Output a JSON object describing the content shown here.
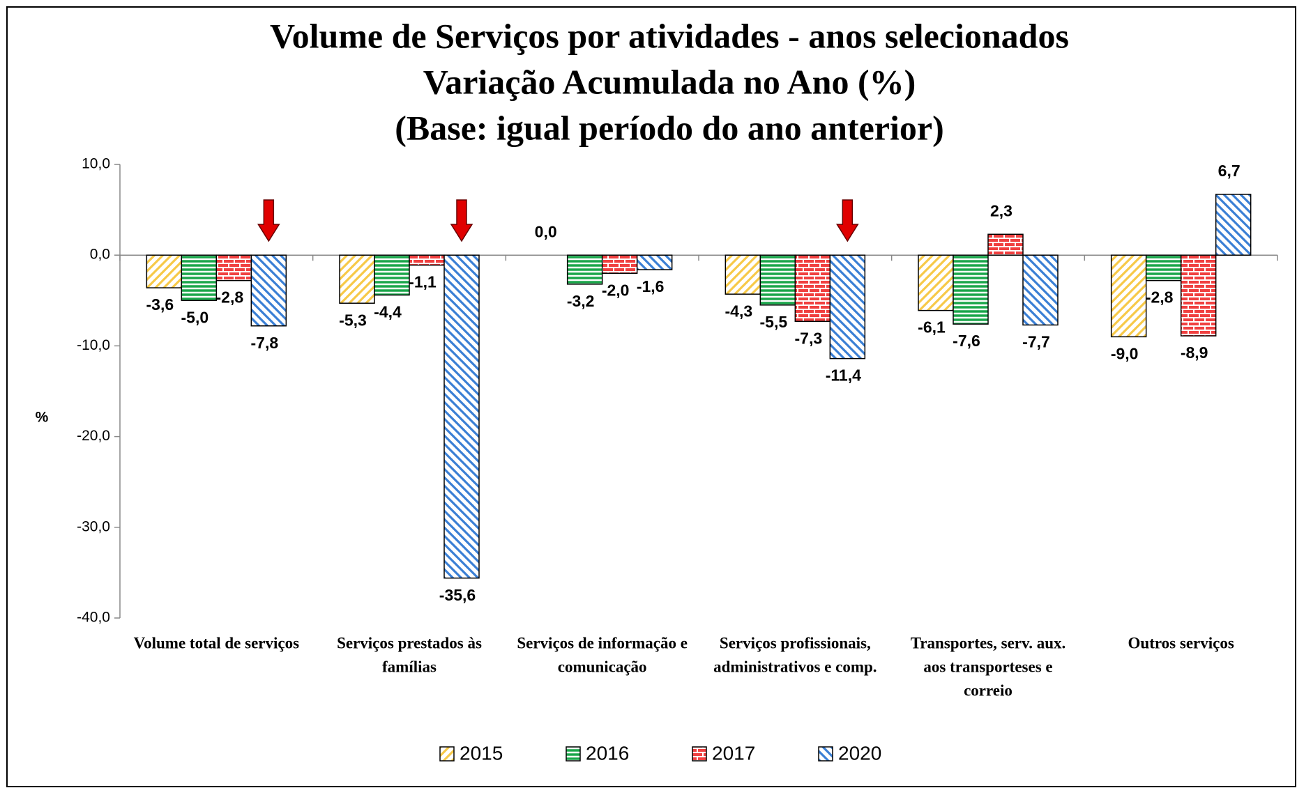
{
  "chart_data": {
    "type": "bar",
    "title": [
      "Volume de Serviços por atividades - anos selecionados",
      "Variação Acumulada no Ano (%)",
      "(Base: igual período do ano anterior)"
    ],
    "y_label": "%",
    "categories": [
      [
        "Volume total de serviços"
      ],
      [
        "Serviços prestados às",
        "famílias"
      ],
      [
        "Serviços de informação e",
        "comunicação"
      ],
      [
        "Serviços profissionais,",
        "administrativos e comp."
      ],
      [
        "Transportes, serv. aux.",
        "aos transporteses e",
        "correio"
      ],
      [
        "Outros serviços"
      ]
    ],
    "series": [
      {
        "name": "2015",
        "color": "#f7c948",
        "pattern": "diagonal-up",
        "values": [
          -3.6,
          -5.3,
          0.0,
          -4.3,
          -6.1,
          -9.0
        ],
        "value_labels": [
          "-3,6",
          "-5,3",
          "0,0",
          "-4,3",
          "-6,1",
          "-9,0"
        ]
      },
      {
        "name": "2016",
        "color": "#1aa64a",
        "pattern": "horizontal",
        "values": [
          -5.0,
          -4.4,
          -3.2,
          -5.5,
          -7.6,
          -2.8
        ],
        "value_labels": [
          "-5,0",
          "-4,4",
          "-3,2",
          "-5,5",
          "-7,6",
          "-2,8"
        ]
      },
      {
        "name": "2017",
        "color": "#f04040",
        "pattern": "brick",
        "values": [
          -2.8,
          -1.1,
          -2.0,
          -7.3,
          2.3,
          -8.9
        ],
        "value_labels": [
          "-2,8",
          "-1,1",
          "-2,0",
          "-7,3",
          "2,3",
          "-8,9"
        ]
      },
      {
        "name": "2020",
        "color": "#3a7fd5",
        "pattern": "diagonal-down",
        "values": [
          -7.8,
          -35.6,
          -1.6,
          -11.4,
          -7.7,
          6.7
        ],
        "value_labels": [
          "-7,8",
          "-35,6",
          "-1,6",
          "-11,4",
          "-7,7",
          "6,7"
        ]
      }
    ],
    "ylim": [
      -40,
      10
    ],
    "yticks": [
      {
        "value": -40,
        "label": "-40,0"
      },
      {
        "value": -30,
        "label": "-30,0"
      },
      {
        "value": -20,
        "label": "-20,0"
      },
      {
        "value": -10,
        "label": "-10,0"
      },
      {
        "value": 0,
        "label": "0,0"
      },
      {
        "value": 10,
        "label": "10,0"
      }
    ],
    "legend": "bottom"
  }
}
